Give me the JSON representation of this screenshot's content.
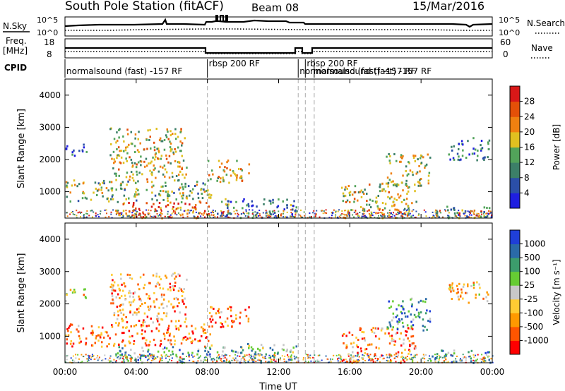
{
  "header": {
    "station": "South Pole Station (fitACF)",
    "beam": "Beam 08",
    "date": "15/Mar/2016"
  },
  "summary_panels": {
    "nsky_label": "N.Sky",
    "nsearch_label": "N.Search",
    "freq_label_1": "Freq.",
    "freq_label_2": "[MHz]",
    "nave_label": "Nave",
    "cpid_label": "CPID",
    "noise_ticks": [
      "10^5",
      "10^0"
    ],
    "freq_ticks": [
      "18",
      "8"
    ],
    "nave_ticks": [
      "60",
      "0"
    ]
  },
  "cpid_segments": [
    {
      "label": "normalsound (fast) -157 RF",
      "start_hour": 0
    },
    {
      "label": "rbsp 200 RF",
      "start_hour": 8.0
    },
    {
      "label": "normalsound (fast) -157 RF",
      "start_hour": 13.1
    },
    {
      "label": "rbsp 200 RF",
      "start_hour": 13.5
    },
    {
      "label": "normalsound (fast) -157 RF",
      "start_hour": 14.0
    }
  ],
  "mode_change_hours": [
    8.0,
    13.1,
    13.5,
    14.0
  ],
  "colors": {
    "power": [
      "#1f1fe0",
      "#2b4fa8",
      "#3c7f68",
      "#52a35a",
      "#e0c020",
      "#f08010",
      "#e45008",
      "#d81818"
    ],
    "velocity": [
      "#ff0000",
      "#ff5500",
      "#ff9900",
      "#ffcc33",
      "#c8c8c8",
      "#66cc33",
      "#3c9c6c",
      "#2a6aa8",
      "#1f3fd8"
    ]
  },
  "chart_data": [
    {
      "type": "heatmap",
      "parameter": "Power",
      "ylabel": "Slant Range [km]",
      "xlabel": "Time UT",
      "colorbar_label": "Power [dB]",
      "colorbar_ticks": [
        "4",
        "8",
        "12",
        "16",
        "20",
        "24",
        "28"
      ],
      "ylim": [
        180,
        4500
      ],
      "yticks": [
        "1000",
        "2000",
        "3000",
        "4000"
      ],
      "xticks": [
        "00:00",
        "04:00",
        "08:00",
        "12:00",
        "16:00",
        "20:00",
        "00:00"
      ],
      "xlim_hours": [
        0,
        24
      ],
      "echo_regions": [
        {
          "t0": 0.0,
          "t1": 8.2,
          "r0": 700,
          "r1": 1400,
          "level": 0.45
        },
        {
          "t0": 0.0,
          "t1": 1.2,
          "r0": 2100,
          "r1": 2500,
          "level": 0.2
        },
        {
          "t0": 2.5,
          "t1": 6.8,
          "r0": 1400,
          "r1": 3000,
          "level": 0.55
        },
        {
          "t0": 2.8,
          "t1": 8.2,
          "r0": 200,
          "r1": 700,
          "level": 0.8
        },
        {
          "t0": 8.0,
          "t1": 10.3,
          "r0": 1300,
          "r1": 2000,
          "level": 0.6
        },
        {
          "t0": 8.5,
          "t1": 13.0,
          "r0": 200,
          "r1": 800,
          "level": 0.3
        },
        {
          "t0": 15.5,
          "t1": 19.7,
          "r0": 200,
          "r1": 1300,
          "level": 0.55
        },
        {
          "t0": 18.0,
          "t1": 20.5,
          "r0": 1200,
          "r1": 2200,
          "level": 0.5
        },
        {
          "t0": 21.5,
          "t1": 23.8,
          "r0": 2000,
          "r1": 2700,
          "level": 0.25
        },
        {
          "t0": 20.5,
          "t1": 24.0,
          "r0": 200,
          "r1": 600,
          "level": 0.35
        }
      ]
    },
    {
      "type": "heatmap",
      "parameter": "Velocity",
      "ylabel": "Slant Range [km]",
      "xlabel": "Time UT",
      "colorbar_label": "Velocity [m s⁻¹]",
      "colorbar_ticks": [
        "1000",
        "500",
        "100",
        "25",
        "-25",
        "-100",
        "-500",
        "-1000"
      ],
      "ylim": [
        180,
        4500
      ],
      "yticks": [
        "1000",
        "2000",
        "3000",
        "4000"
      ],
      "xticks": [
        "00:00",
        "04:00",
        "08:00",
        "12:00",
        "16:00",
        "20:00",
        "00:00"
      ],
      "xlim_hours": [
        0,
        24
      ],
      "echo_regions": [
        {
          "t0": 0.0,
          "t1": 8.2,
          "r0": 700,
          "r1": 1400,
          "level": 0.2
        },
        {
          "t0": 0.0,
          "t1": 1.2,
          "r0": 2100,
          "r1": 2500,
          "level": 0.45
        },
        {
          "t0": 2.5,
          "t1": 6.8,
          "r0": 1400,
          "r1": 3000,
          "level": 0.3
        },
        {
          "t0": 2.8,
          "t1": 8.2,
          "r0": 200,
          "r1": 700,
          "level": 0.7
        },
        {
          "t0": 8.0,
          "t1": 10.3,
          "r0": 1300,
          "r1": 2000,
          "level": 0.2
        },
        {
          "t0": 8.5,
          "t1": 13.0,
          "r0": 200,
          "r1": 800,
          "level": 0.65
        },
        {
          "t0": 15.5,
          "t1": 19.7,
          "r0": 200,
          "r1": 1300,
          "level": 0.25
        },
        {
          "t0": 18.0,
          "t1": 20.5,
          "r0": 1200,
          "r1": 2200,
          "level": 0.75
        },
        {
          "t0": 21.5,
          "t1": 23.8,
          "r0": 2000,
          "r1": 2700,
          "level": 0.35
        },
        {
          "t0": 20.5,
          "t1": 24.0,
          "r0": 200,
          "r1": 600,
          "level": 0.7
        }
      ]
    }
  ]
}
